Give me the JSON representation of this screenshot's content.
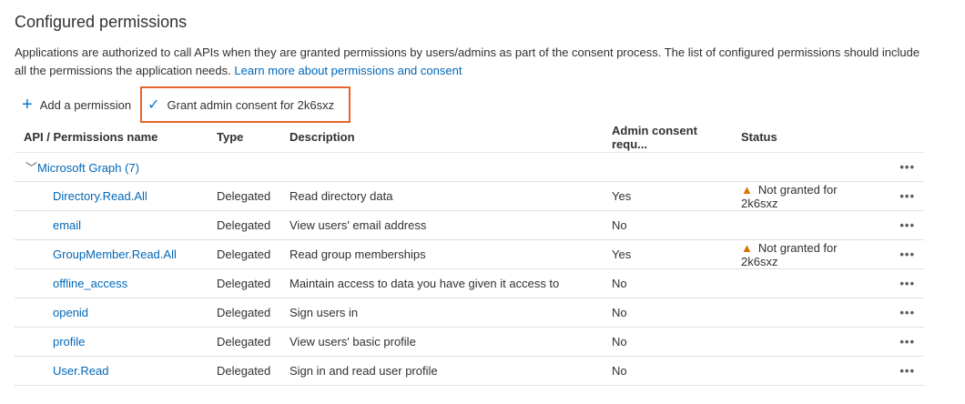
{
  "title": "Configured permissions",
  "intro": "Applications are authorized to call APIs when they are granted permissions by users/admins as part of the consent process. The list of configured permissions should include all the permissions the application needs.",
  "learn_more": "Learn more about permissions and consent",
  "toolbar": {
    "add": "Add a permission",
    "grant": "Grant admin consent for 2k6sxz",
    "highlight_color": "#e8622c"
  },
  "columns": [
    "API / Permissions name",
    "Type",
    "Description",
    "Admin consent requ...",
    "Status"
  ],
  "group": {
    "label": "Microsoft Graph (7)"
  },
  "more": "•••",
  "rows": [
    {
      "name": "Directory.Read.All",
      "type": "Delegated",
      "description": "Read directory data",
      "admin": "Yes",
      "status": "Not granted for 2k6sxz"
    },
    {
      "name": "email",
      "type": "Delegated",
      "description": "View users' email address",
      "admin": "No",
      "status": ""
    },
    {
      "name": "GroupMember.Read.All",
      "type": "Delegated",
      "description": "Read group memberships",
      "admin": "Yes",
      "status": "Not granted for 2k6sxz"
    },
    {
      "name": "offline_access",
      "type": "Delegated",
      "description": "Maintain access to data you have given it access to",
      "admin": "No",
      "status": ""
    },
    {
      "name": "openid",
      "type": "Delegated",
      "description": "Sign users in",
      "admin": "No",
      "status": ""
    },
    {
      "name": "profile",
      "type": "Delegated",
      "description": "View users' basic profile",
      "admin": "No",
      "status": ""
    },
    {
      "name": "User.Read",
      "type": "Delegated",
      "description": "Sign in and read user profile",
      "admin": "No",
      "status": ""
    }
  ]
}
